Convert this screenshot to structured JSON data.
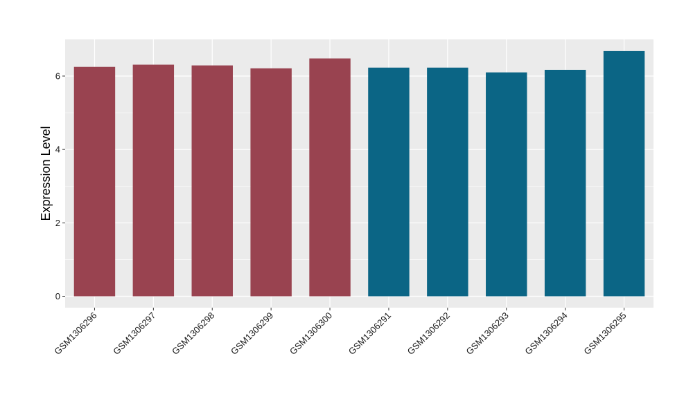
{
  "chart_data": {
    "type": "bar",
    "title": "",
    "xlabel": "",
    "ylabel": "Expression Level",
    "ylim": [
      -0.32,
      7.0
    ],
    "yticks": [
      0,
      2,
      4,
      6
    ],
    "grid": true,
    "legend": "none",
    "categories": [
      "GSM1306296",
      "GSM1306297",
      "GSM1306298",
      "GSM1306299",
      "GSM1306300",
      "GSM1306291",
      "GSM1306292",
      "GSM1306293",
      "GSM1306294",
      "GSM1306295"
    ],
    "values": [
      6.25,
      6.31,
      6.29,
      6.21,
      6.48,
      6.23,
      6.23,
      6.1,
      6.17,
      6.68
    ],
    "bar_colors": [
      "#994350",
      "#994350",
      "#994350",
      "#994350",
      "#994350",
      "#0b6585",
      "#0b6585",
      "#0b6585",
      "#0b6585",
      "#0b6585"
    ],
    "panel_background": "#ebebeb",
    "grid_color": "#ffffff"
  }
}
